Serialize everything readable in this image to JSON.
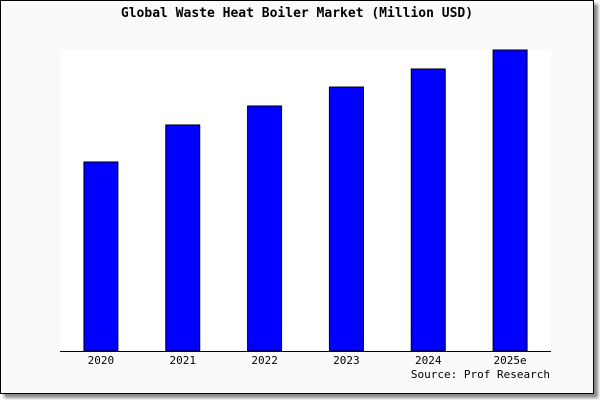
{
  "chart_data": {
    "type": "bar",
    "title": "Global Waste Heat Boiler Market (Million USD)",
    "categories": [
      "2020",
      "2021",
      "2022",
      "2023",
      "2024",
      "2025e"
    ],
    "values": [
      62.8,
      75.1,
      81.4,
      87.7,
      93.7,
      100
    ],
    "ylim": [
      0,
      100
    ],
    "xlabel": "",
    "ylabel": "",
    "grid": false,
    "bar_color": "#0000ff",
    "bar_edge_color": "#000000",
    "background_color": "#fafafa",
    "plot_background_color": "#ffffff",
    "source": "Source: Prof Research"
  }
}
